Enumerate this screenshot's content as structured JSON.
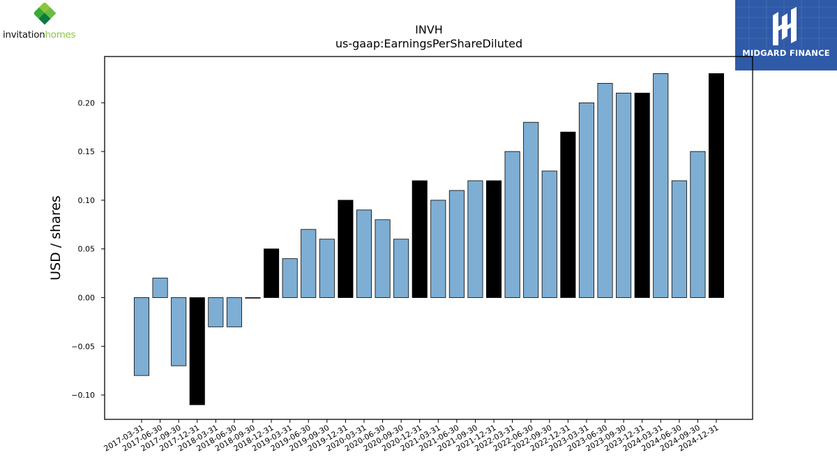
{
  "branding": {
    "left_logo": {
      "wordmark_part1": "invitation",
      "wordmark_part2": "homes",
      "colors": [
        "#8cc63f",
        "#3aa935",
        "#0d7a3e",
        "#6bbd45"
      ]
    },
    "right_logo": {
      "text": "MIDGARD FINANCE",
      "background": "#2f5aa8"
    }
  },
  "chart_data": {
    "type": "bar",
    "title": "INVH",
    "subtitle": "us-gaap:EarningsPerShareDiluted",
    "xlabel": "",
    "ylabel": "USD / shares",
    "ylim": [
      -0.125,
      0.2475
    ],
    "yticks": [
      -0.1,
      -0.05,
      0.0,
      0.05,
      0.1,
      0.15,
      0.2
    ],
    "ytick_labels": [
      "−0.10",
      "−0.05",
      "0.00",
      "0.05",
      "0.10",
      "0.15",
      "0.20"
    ],
    "categories": [
      "2017-03-31",
      "2017-06-30",
      "2017-09-30",
      "2017-12-31",
      "2018-03-31",
      "2018-06-30",
      "2018-09-30",
      "2018-12-31",
      "2019-03-31",
      "2019-06-30",
      "2019-09-30",
      "2019-12-31",
      "2020-03-31",
      "2020-06-30",
      "2020-09-30",
      "2020-12-31",
      "2021-03-31",
      "2021-06-30",
      "2021-09-30",
      "2021-12-31",
      "2022-03-31",
      "2022-06-30",
      "2022-09-30",
      "2022-12-31",
      "2023-03-31",
      "2023-06-30",
      "2023-09-30",
      "2023-12-31",
      "2024-03-31",
      "2024-06-30",
      "2024-09-30",
      "2024-12-31"
    ],
    "values": [
      -0.08,
      0.02,
      -0.07,
      -0.11,
      -0.03,
      -0.03,
      0.0,
      0.05,
      0.04,
      0.07,
      0.06,
      0.1,
      0.09,
      0.08,
      0.06,
      0.12,
      0.1,
      0.11,
      0.12,
      0.12,
      0.15,
      0.18,
      0.13,
      0.17,
      0.2,
      0.22,
      0.21,
      0.21,
      0.23,
      0.12,
      0.15,
      0.23
    ],
    "year_end": [
      false,
      false,
      false,
      true,
      false,
      false,
      false,
      true,
      false,
      false,
      false,
      true,
      false,
      false,
      false,
      true,
      false,
      false,
      false,
      true,
      false,
      false,
      false,
      true,
      false,
      false,
      false,
      true,
      false,
      false,
      false,
      true
    ],
    "colors": {
      "quarter": "#7eaed3",
      "year_end": "#000000",
      "edge": "#000000"
    },
    "grid": false,
    "legend": "none"
  }
}
